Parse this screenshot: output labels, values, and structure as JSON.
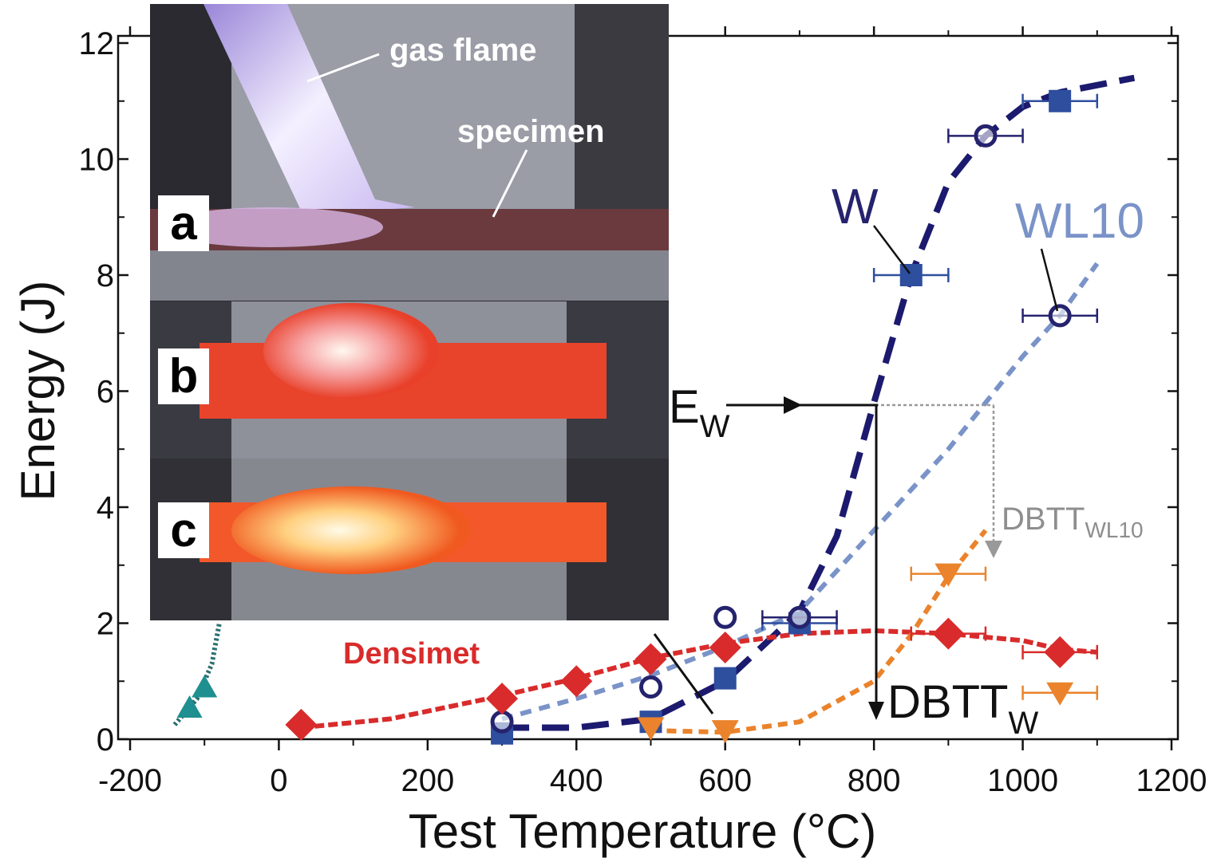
{
  "chart_data": {
    "type": "scatter",
    "x_label": "Test Temperature (°C)",
    "y_label": "Energy (J)",
    "xlim": [
      -200,
      1200
    ],
    "xticks": [
      -200,
      0,
      200,
      400,
      600,
      800,
      1000,
      1200
    ],
    "ylim": [
      0,
      12
    ],
    "yticks": [
      0,
      2,
      4,
      6,
      8,
      10,
      12
    ],
    "grid": false,
    "series": [
      {
        "name": "W",
        "color": "#2e4e9e",
        "marker": "square",
        "line_color": "#1c1a6e",
        "dash": "34 16",
        "x": [
          300,
          500,
          600,
          700,
          850,
          1050
        ],
        "values": [
          0.1,
          0.3,
          1.05,
          2.0,
          8.0,
          11.0
        ],
        "xerr": [
          null,
          null,
          null,
          50,
          50,
          50
        ],
        "fit_x": [
          300,
          400,
          500,
          600,
          700,
          750,
          800,
          850,
          900,
          950,
          1000,
          1050,
          1150
        ],
        "fit_values": [
          0.2,
          0.2,
          0.35,
          1.0,
          2.2,
          3.5,
          5.8,
          8.0,
          9.6,
          10.4,
          10.9,
          11.15,
          11.4
        ]
      },
      {
        "name": "WL10",
        "color": "#25236e",
        "marker": "circle",
        "line_color": "#7a93c8",
        "dash": "14 10",
        "x": [
          300,
          500,
          600,
          700,
          950,
          1050
        ],
        "values": [
          0.3,
          0.9,
          2.1,
          2.1,
          10.4,
          7.3
        ],
        "xerr": [
          null,
          null,
          null,
          50,
          50,
          50
        ],
        "fit_x": [
          300,
          400,
          500,
          600,
          700,
          800,
          900,
          950,
          1000,
          1050,
          1100
        ],
        "fit_values": [
          0.35,
          0.7,
          1.1,
          1.6,
          2.2,
          3.6,
          5.0,
          5.8,
          6.6,
          7.3,
          8.2
        ]
      },
      {
        "name": "Densimet",
        "color": "#d92b2b",
        "marker": "diamond",
        "line_color": "#d92b2b",
        "dash": "12 5",
        "x": [
          30,
          300,
          400,
          500,
          600,
          900,
          1050
        ],
        "values": [
          0.25,
          0.7,
          1.0,
          1.38,
          1.58,
          1.82,
          1.5
        ],
        "xerr": [
          null,
          null,
          null,
          null,
          null,
          50,
          50
        ],
        "fit_x": [
          30,
          150,
          300,
          400,
          500,
          600,
          700,
          800,
          900,
          1000,
          1050,
          1100
        ],
        "fit_values": [
          0.2,
          0.35,
          0.75,
          1.05,
          1.4,
          1.65,
          1.82,
          1.87,
          1.82,
          1.7,
          1.55,
          1.5
        ]
      },
      {
        "color": "#ea832b",
        "marker": "triangle-down",
        "line_color": "#ea832b",
        "dash": "12 8",
        "x": [
          500,
          600,
          900,
          1050
        ],
        "values": [
          0.2,
          0.15,
          2.85,
          0.8
        ],
        "xerr": [
          null,
          null,
          50,
          50
        ],
        "fit_x": [
          500,
          600,
          700,
          800,
          850,
          900,
          950
        ],
        "fit_values": [
          0.15,
          0.12,
          0.3,
          1.0,
          1.8,
          2.8,
          3.6
        ]
      },
      {
        "color": "#1f8f8f",
        "marker": "triangle-up",
        "line_color": "#2a6f6f",
        "dash": "3 3",
        "x": [
          -120,
          -100
        ],
        "values": [
          0.55,
          0.9
        ],
        "xerr": [
          null,
          null
        ],
        "fit_x": [
          -140,
          -110,
          -90,
          -80
        ],
        "fit_values": [
          0.25,
          0.7,
          1.3,
          2.0
        ]
      }
    ],
    "annotations": [
      {
        "text": "W"
      },
      {
        "text": "WL10"
      },
      {
        "text": "Densimet"
      },
      {
        "text": "E",
        "subscript": "W"
      },
      {
        "text": "DBTT",
        "subscript": "W"
      },
      {
        "text": "DBTT",
        "subscript": "WL10"
      }
    ]
  },
  "inset": {
    "labels": [
      "gas flame",
      "specimen"
    ],
    "panels": [
      "a",
      "b",
      "c"
    ]
  }
}
